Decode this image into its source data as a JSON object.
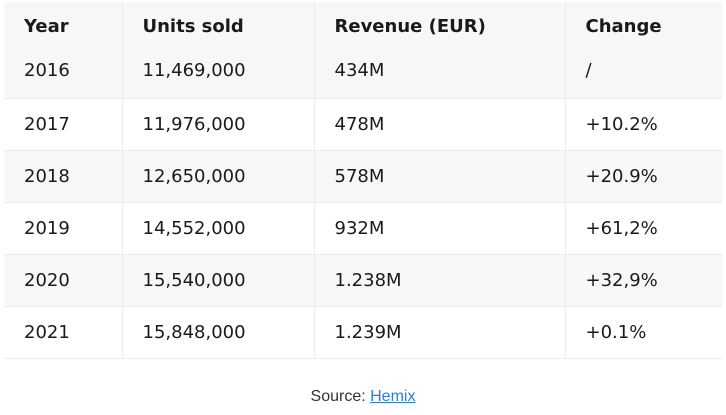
{
  "table": {
    "headers": [
      "Year",
      "Units sold",
      "Revenue (EUR)",
      "Change"
    ],
    "rows": [
      [
        "2016",
        "11,469,000",
        "434M",
        "/"
      ],
      [
        "2017",
        "11,976,000",
        "478M",
        "+10.2%"
      ],
      [
        "2018",
        "12,650,000",
        "578M",
        "+20.9%"
      ],
      [
        "2019",
        "14,552,000",
        "932M",
        "+61,2%"
      ],
      [
        "2020",
        "15,540,000",
        "1.238M",
        "+32,9%"
      ],
      [
        "2021",
        "15,848,000",
        "1.239M",
        "+0.1%"
      ]
    ]
  },
  "footer": {
    "source_prefix": "Source:",
    "source_link": "Hemix"
  },
  "colors": {
    "link": "#2a7de1",
    "row_alt_bg": "#f7f7f7"
  }
}
